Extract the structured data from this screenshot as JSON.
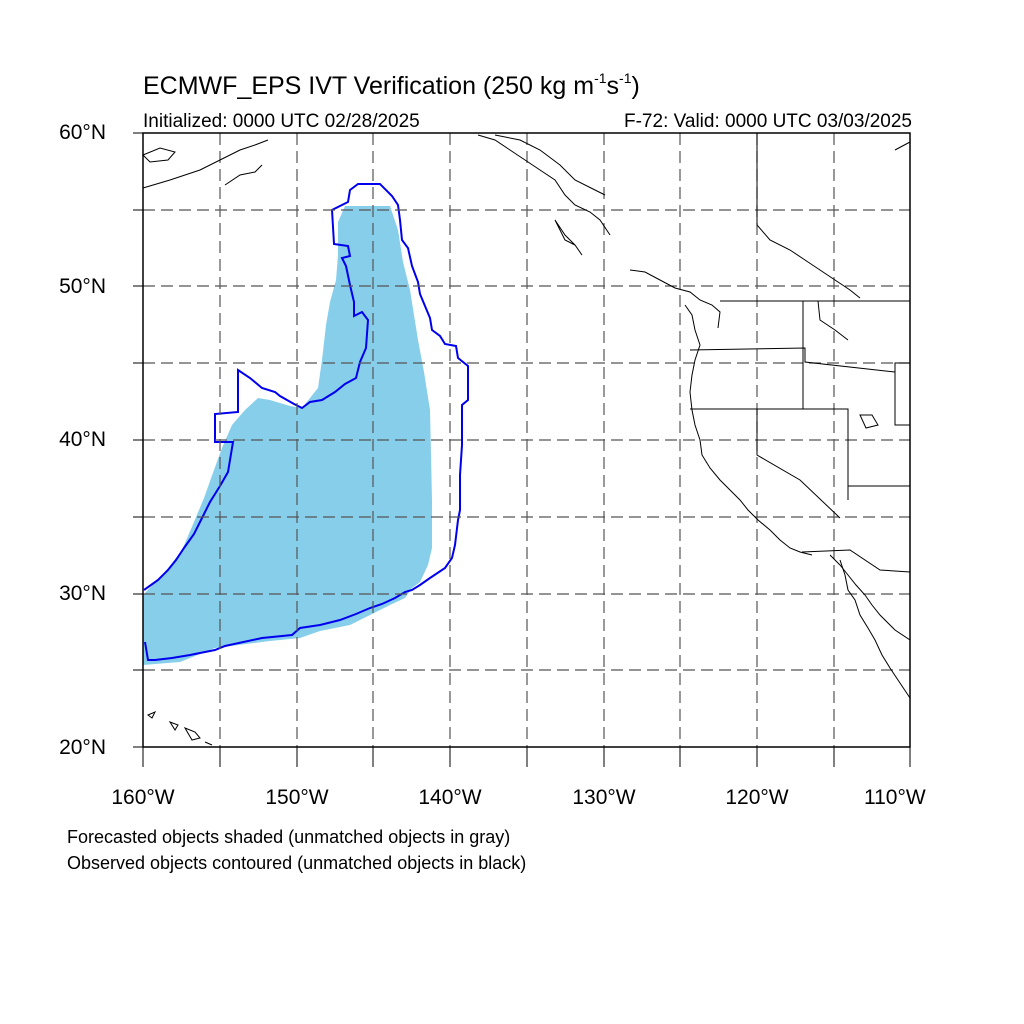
{
  "header": {
    "title_main": "ECMWF_EPS IVT Verification (250 kg m",
    "title_exp1": "-1",
    "title_mid": "s",
    "title_exp2": "-1",
    "title_end": ")",
    "initialized": "Initialized: 0000 UTC 02/28/2025",
    "valid": "F-72: Valid: 0000 UTC 03/03/2025"
  },
  "map": {
    "lat_range": [
      20,
      60
    ],
    "lon_range": [
      -160,
      -110
    ],
    "lat_labels": [
      "60°N",
      "50°N",
      "40°N",
      "30°N",
      "20°N"
    ],
    "lon_labels": [
      "160°W",
      "150°W",
      "140°W",
      "130°W",
      "120°W",
      "110°W"
    ],
    "forecast_object_color": "#87ceeb",
    "observed_contour_color": "#0000ee",
    "coastline_color": "#000000",
    "gridline_style": "dashed"
  },
  "footer": {
    "line1": "Forecasted objects shaded (unmatched objects in gray)",
    "line2": "Observed objects contoured (unmatched objects in black)"
  }
}
